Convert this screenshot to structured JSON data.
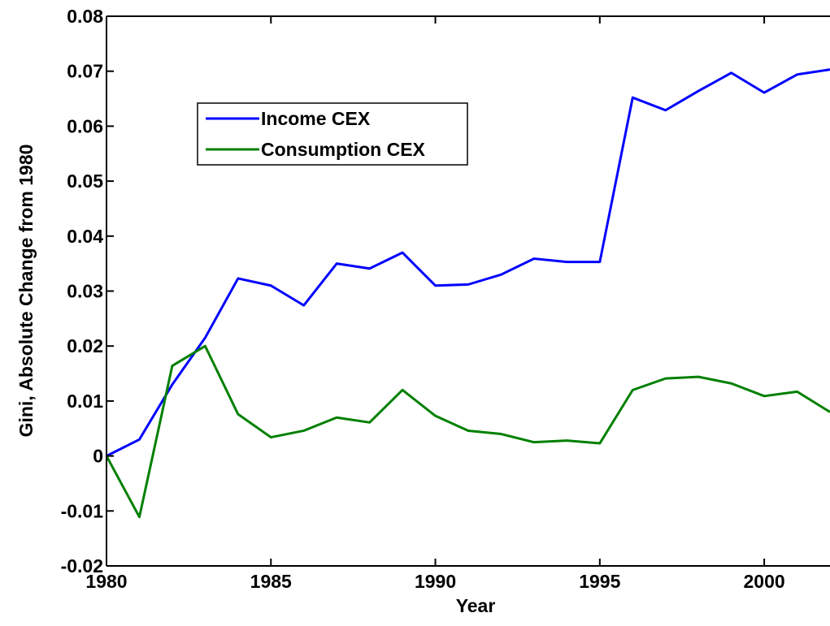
{
  "chart_data": {
    "type": "line",
    "xlabel": "Year",
    "ylabel": "Gini, Absolute Change from 1980",
    "x": [
      1980,
      1981,
      1982,
      1983,
      1984,
      1985,
      1986,
      1987,
      1988,
      1989,
      1990,
      1991,
      1992,
      1993,
      1994,
      1995,
      1996,
      1997,
      1998,
      1999,
      2000,
      2001,
      2002
    ],
    "series": [
      {
        "name": "Income CEX",
        "color": "#0000ff",
        "values": [
          0,
          0.003,
          0.013,
          0.0215,
          0.0323,
          0.031,
          0.0274,
          0.035,
          0.0341,
          0.037,
          0.031,
          0.0312,
          0.033,
          0.0359,
          0.0353,
          0.0353,
          0.0652,
          0.0629,
          0.0664,
          0.0697,
          0.0661,
          0.0694,
          0.0703
        ]
      },
      {
        "name": "Consumption CEX",
        "color": "#008000",
        "values": [
          0,
          -0.0111,
          0.0164,
          0.02,
          0.0076,
          0.0034,
          0.0046,
          0.007,
          0.0061,
          0.012,
          0.0073,
          0.0046,
          0.004,
          0.0025,
          0.0028,
          0.0023,
          0.012,
          0.0141,
          0.0144,
          0.0132,
          0.0109,
          0.0117,
          0.008
        ]
      }
    ],
    "xlim": [
      1980,
      2002
    ],
    "xticks": [
      1980,
      1985,
      1990,
      1995,
      2000
    ],
    "ylim": [
      -0.02,
      0.08
    ],
    "yticks": [
      -0.02,
      -0.01,
      0,
      0.01,
      0.02,
      0.03,
      0.04,
      0.05,
      0.06,
      0.07,
      0.08
    ],
    "grid": false,
    "legend": "upper left"
  }
}
